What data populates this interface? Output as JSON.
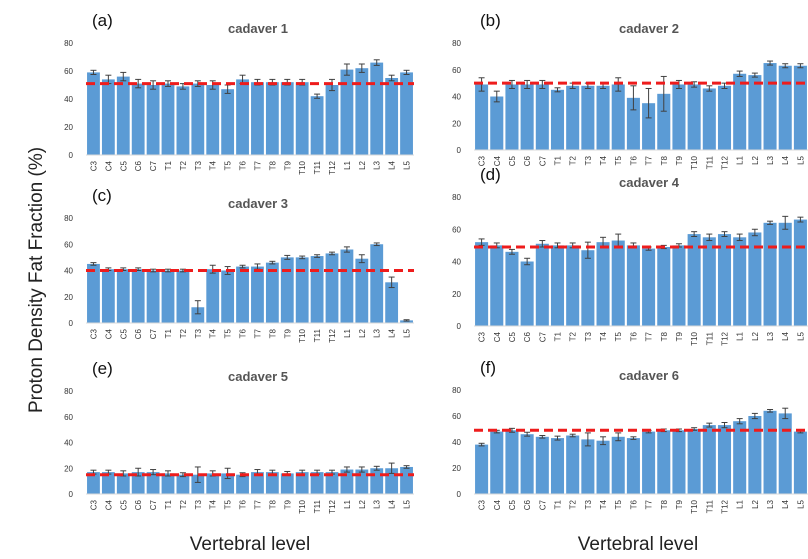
{
  "figure": {
    "ylabel": "Proton Density Fat Fraction (%)",
    "xlabel_left": "Vertebral level",
    "xlabel_right": "Vertebral level"
  },
  "colors": {
    "bar": "#5b9bd5",
    "reference_line": "#ee1c1c",
    "error_bar": "#404040"
  },
  "chart_data": [
    {
      "type": "bar",
      "panel": "(a)",
      "title": "cadaver 1",
      "xlabel": "",
      "ylabel": "",
      "ylim": [
        0,
        80
      ],
      "yticks": [
        0,
        20,
        40,
        60,
        80
      ],
      "grid": false,
      "legend": "none",
      "categories": [
        "C3",
        "C4",
        "C5",
        "C6",
        "C7",
        "T1",
        "T2",
        "T3",
        "T4",
        "T5",
        "T6",
        "T7",
        "T8",
        "T9",
        "T10",
        "T11",
        "T12",
        "L1",
        "L2",
        "L3",
        "L4",
        "L5"
      ],
      "values": [
        59,
        54,
        56,
        51,
        50,
        51,
        49,
        51,
        50,
        47,
        54,
        52,
        52,
        52,
        52,
        42,
        50,
        61,
        62,
        66,
        55,
        59
      ],
      "errors": [
        1.5,
        3,
        3,
        3,
        3,
        2,
        2,
        2,
        3,
        3,
        3,
        2,
        2,
        2,
        2,
        1.5,
        4,
        4,
        3,
        2,
        2,
        1.5
      ],
      "reference_line": 51
    },
    {
      "type": "bar",
      "panel": "(b)",
      "title": "cadaver 2",
      "xlabel": "",
      "ylabel": "",
      "ylim": [
        0,
        80
      ],
      "yticks": [
        0,
        20,
        40,
        60,
        80
      ],
      "grid": false,
      "legend": "none",
      "categories": [
        "C3",
        "C4",
        "C5",
        "C6",
        "C7",
        "T1",
        "T2",
        "T3",
        "T4",
        "T5",
        "T6",
        "T7",
        "T8",
        "T9",
        "T10",
        "T11",
        "T12",
        "L1",
        "L2",
        "L3",
        "L4",
        "L5"
      ],
      "values": [
        49,
        40,
        49,
        49,
        49,
        45,
        48,
        48,
        48,
        49,
        39,
        35,
        42,
        49,
        49,
        46,
        48,
        57,
        56,
        65,
        63,
        63
      ],
      "errors": [
        5,
        4,
        3,
        3,
        3,
        1.5,
        2,
        2,
        2,
        5,
        9,
        11,
        13,
        3,
        2,
        2,
        2,
        2,
        1.5,
        1.5,
        1.5,
        1.5
      ],
      "reference_line": 50
    },
    {
      "type": "bar",
      "panel": "(c)",
      "title": "cadaver 3",
      "xlabel": "",
      "ylabel": "",
      "ylim": [
        0,
        80
      ],
      "yticks": [
        0,
        20,
        40,
        60,
        80
      ],
      "grid": false,
      "legend": "none",
      "categories": [
        "C3",
        "C4",
        "C5",
        "C6",
        "C7",
        "T1",
        "T2",
        "T3",
        "T4",
        "T5",
        "T6",
        "T7",
        "T8",
        "T9",
        "T10",
        "T11",
        "T12",
        "L1",
        "L2",
        "L3",
        "L4",
        "L5"
      ],
      "values": [
        45,
        41,
        41,
        41,
        40,
        40,
        40,
        12,
        41,
        40,
        43,
        43,
        46,
        50,
        50,
        51,
        53,
        56,
        49,
        60,
        31,
        2
      ],
      "errors": [
        1,
        1,
        1,
        1,
        1,
        1,
        1,
        5,
        3,
        3,
        1,
        2,
        1,
        1.5,
        1,
        1,
        1,
        2,
        3,
        1,
        4,
        0.5
      ],
      "reference_line": 40
    },
    {
      "type": "bar",
      "panel": "(d)",
      "title": "cadaver 4",
      "xlabel": "",
      "ylabel": "",
      "ylim": [
        0,
        80
      ],
      "yticks": [
        0,
        20,
        40,
        60,
        80
      ],
      "grid": false,
      "legend": "none",
      "categories": [
        "C3",
        "C4",
        "C5",
        "C6",
        "C7",
        "T1",
        "T2",
        "T3",
        "T4",
        "T5",
        "T6",
        "T7",
        "T8",
        "T9",
        "T10",
        "T11",
        "T12",
        "L1",
        "L2",
        "L3",
        "L4",
        "L5"
      ],
      "values": [
        52,
        50,
        46,
        40,
        51,
        50,
        50,
        47,
        52,
        53,
        50,
        48,
        49,
        50,
        57,
        55,
        57,
        55,
        58,
        64,
        64,
        66
      ],
      "errors": [
        2,
        1.5,
        1.5,
        2,
        2,
        1.5,
        1.5,
        5,
        3,
        4,
        1.5,
        1,
        1,
        1,
        1.5,
        2,
        1.5,
        2,
        2,
        1,
        4,
        1.5
      ],
      "reference_line": 49
    },
    {
      "type": "bar",
      "panel": "(e)",
      "title": "cadaver 5",
      "xlabel": "",
      "ylabel": "",
      "ylim": [
        0,
        80
      ],
      "yticks": [
        0,
        20,
        40,
        60,
        80
      ],
      "grid": false,
      "legend": "none",
      "categories": [
        "C3",
        "C4",
        "C5",
        "C6",
        "C7",
        "T1",
        "T2",
        "T3",
        "T4",
        "T5",
        "T6",
        "T7",
        "T8",
        "T9",
        "T10",
        "T11",
        "T12",
        "L1",
        "L2",
        "L3",
        "L4",
        "L5"
      ],
      "values": [
        17,
        17,
        16,
        17,
        17,
        16,
        15,
        15,
        16,
        16,
        15,
        17,
        17,
        16,
        17,
        17,
        17,
        19,
        19,
        20,
        20,
        21
      ],
      "errors": [
        1.5,
        1.5,
        2,
        3,
        2,
        2,
        1.5,
        6,
        2,
        4,
        1.5,
        2,
        1.5,
        1.5,
        1.5,
        1.5,
        1.5,
        2,
        2,
        1.5,
        4,
        1
      ],
      "reference_line": 15
    },
    {
      "type": "bar",
      "panel": "(f)",
      "title": "cadaver 6",
      "xlabel": "",
      "ylabel": "",
      "ylim": [
        0,
        80
      ],
      "yticks": [
        0,
        20,
        40,
        60,
        80
      ],
      "grid": false,
      "legend": "none",
      "categories": [
        "C3",
        "C4",
        "C5",
        "C6",
        "C7",
        "T1",
        "T2",
        "T3",
        "T4",
        "T5",
        "T6",
        "T7",
        "T8",
        "T9",
        "T10",
        "T11",
        "T12",
        "L1",
        "L2",
        "L3",
        "L4",
        "L5"
      ],
      "values": [
        38,
        48,
        49,
        46,
        44,
        43,
        45,
        42,
        41,
        44,
        43,
        48,
        49,
        49,
        50,
        53,
        53,
        56,
        60,
        64,
        62,
        48
      ],
      "errors": [
        1,
        1,
        1.5,
        1.5,
        1,
        1.5,
        1,
        5,
        3,
        3,
        1,
        1,
        1,
        1,
        1,
        1.5,
        2,
        2,
        2,
        1,
        4,
        1
      ],
      "reference_line": 49
    }
  ]
}
